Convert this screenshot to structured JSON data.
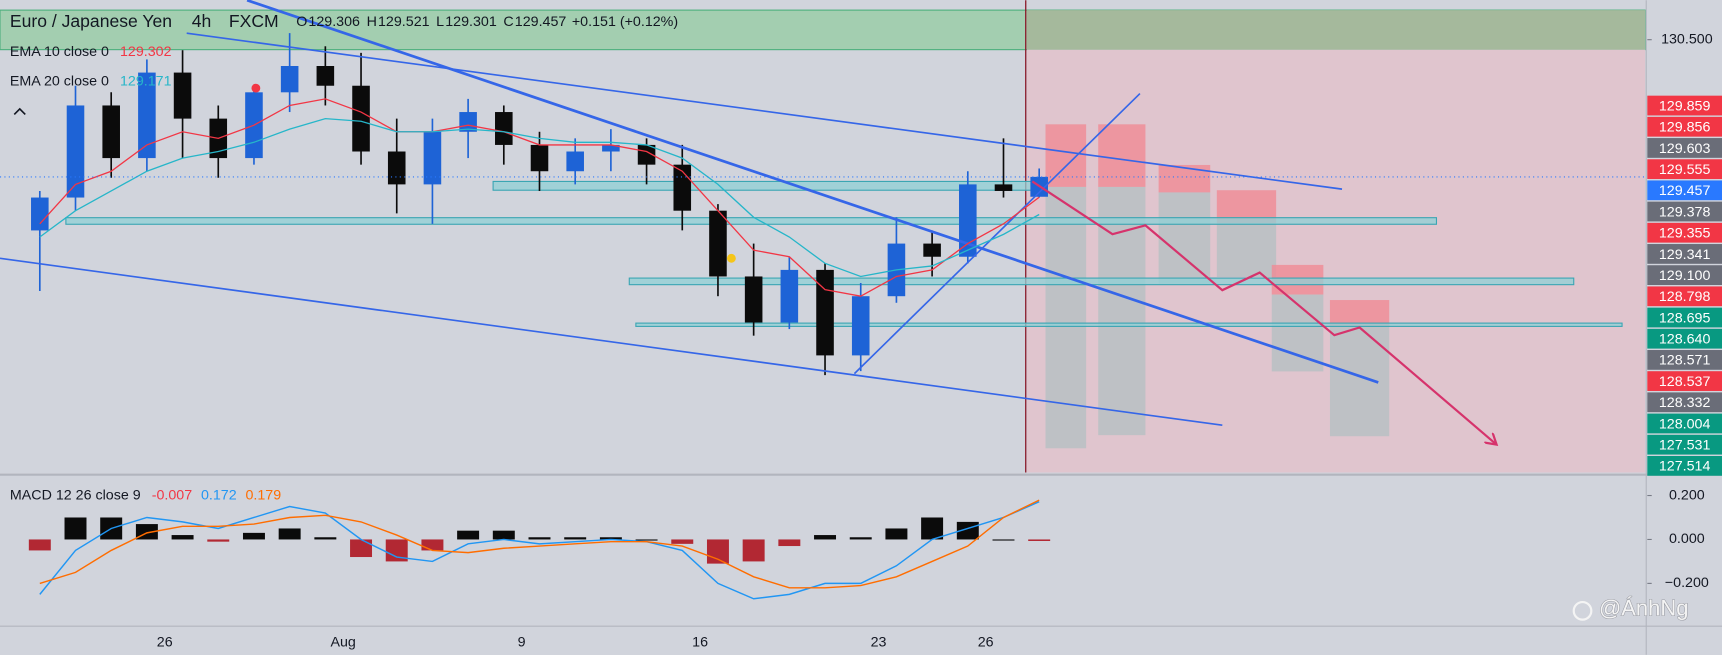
{
  "chart_data": {
    "type": "candlestick",
    "header": {
      "symbol": "Euro / Japanese Yen",
      "interval": "4h",
      "source": "FXCM",
      "ohlc": [
        {
          "label": "O",
          "value": 129.306
        },
        {
          "label": "H",
          "value": 129.521
        },
        {
          "label": "L",
          "value": 129.301
        },
        {
          "label": "C",
          "value": 129.457
        }
      ],
      "change": "+0.151 (+0.12%)"
    },
    "categories": [
      null,
      null,
      null,
      null,
      "26",
      null,
      null,
      null,
      null,
      "Aug",
      null,
      null,
      null,
      null,
      "9",
      null,
      null,
      null,
      null,
      "16",
      null,
      null,
      null,
      null,
      "23",
      null,
      null,
      "26",
      null
    ],
    "open": [
      129.05,
      129.3,
      130.0,
      129.6,
      130.25,
      129.9,
      129.6,
      130.1,
      130.3,
      130.15,
      129.65,
      129.4,
      129.8,
      129.95,
      129.7,
      129.5,
      129.65,
      129.7,
      129.55,
      129.2,
      128.7,
      128.35,
      128.75,
      128.1,
      128.55,
      128.95,
      128.85,
      129.4,
      129.306
    ],
    "high": [
      129.35,
      130.15,
      130.1,
      130.35,
      130.42,
      130.0,
      130.15,
      130.55,
      130.45,
      130.4,
      129.9,
      129.9,
      130.05,
      130.0,
      129.8,
      129.75,
      129.82,
      129.75,
      129.7,
      129.25,
      128.95,
      128.85,
      128.8,
      128.65,
      129.15,
      129.05,
      129.5,
      129.75,
      129.521
    ],
    "low": [
      128.59,
      129.2,
      129.45,
      129.5,
      129.6,
      129.45,
      129.55,
      129.95,
      130.0,
      129.55,
      129.18,
      129.1,
      129.6,
      129.55,
      129.35,
      129.4,
      129.5,
      129.4,
      129.05,
      128.55,
      128.25,
      128.3,
      127.95,
      127.98,
      128.5,
      128.7,
      128.8,
      129.3,
      129.301
    ],
    "close": [
      129.3,
      130.0,
      129.6,
      130.25,
      129.9,
      129.6,
      130.1,
      130.3,
      130.15,
      129.65,
      129.4,
      129.8,
      129.95,
      129.7,
      129.5,
      129.65,
      129.7,
      129.55,
      129.2,
      128.7,
      128.35,
      128.75,
      128.1,
      128.55,
      128.95,
      128.85,
      129.4,
      129.35,
      129.457
    ],
    "up_color": "#1e63d6",
    "down_color": "#0b0b0b",
    "ylim": [
      127.21,
      130.8
    ],
    "yticks": [
      {
        "value": 130.5,
        "label": "130.500"
      }
    ],
    "price_labels": [
      {
        "value": 129.859,
        "color": "#f23645"
      },
      {
        "value": 129.856,
        "color": "#f23645"
      },
      {
        "value": 129.603,
        "color": "#6a6d78"
      },
      {
        "value": 129.555,
        "color": "#f23645"
      },
      {
        "value": 129.457,
        "color": "#2979ff"
      },
      {
        "value": 129.378,
        "color": "#6a6d78"
      },
      {
        "value": 129.355,
        "color": "#f23645"
      },
      {
        "value": 129.341,
        "color": "#6a6d78"
      },
      {
        "value": 129.1,
        "label": "129.100",
        "color": "#6a6d78"
      },
      {
        "value": 128.798,
        "color": "#f23645"
      },
      {
        "value": 128.695,
        "color": "#089981"
      },
      {
        "value": 128.64,
        "label": "128.640",
        "color": "#089981"
      },
      {
        "value": 128.571,
        "color": "#6a6d78"
      },
      {
        "value": 128.537,
        "color": "#f23645"
      },
      {
        "value": 128.332,
        "color": "#6a6d78"
      },
      {
        "value": 128.004,
        "color": "#089981"
      },
      {
        "value": 127.531,
        "color": "#089981"
      },
      {
        "value": 127.514,
        "color": "#089981"
      }
    ],
    "indicators": [
      {
        "name": "EMA 10 close 0",
        "value": 129.302,
        "color": "#f23645",
        "values": [
          129.1,
          129.4,
          129.5,
          129.7,
          129.8,
          129.75,
          129.85,
          130.0,
          130.05,
          129.95,
          129.8,
          129.8,
          129.85,
          129.8,
          129.7,
          129.7,
          129.7,
          129.65,
          129.5,
          129.2,
          128.9,
          128.85,
          128.6,
          128.55,
          128.7,
          128.75,
          128.95,
          129.1,
          129.302
        ]
      },
      {
        "name": "EMA 20 close 0",
        "value": 129.171,
        "color": "#26b6c9",
        "values": [
          129.0,
          129.2,
          129.35,
          129.5,
          129.6,
          129.65,
          129.72,
          129.82,
          129.9,
          129.88,
          129.8,
          129.8,
          129.82,
          129.8,
          129.75,
          129.72,
          129.72,
          129.7,
          129.6,
          129.4,
          129.15,
          129.0,
          128.8,
          128.7,
          128.75,
          128.78,
          128.9,
          129.02,
          129.171
        ]
      }
    ],
    "macd": {
      "name": "MACD 12 26 close 9",
      "ylim": [
        -0.395,
        0.29
      ],
      "yticks": [
        {
          "value": 0.2,
          "label": "0.200"
        },
        {
          "value": 0,
          "label": "0.000"
        },
        {
          "value": -0.2,
          "label": "−0.200"
        }
      ],
      "histogram": {
        "value": -0.007,
        "color": "#f23645",
        "positive_color": "#0b0b0b",
        "negative_color": "#b22833",
        "values": [
          -0.05,
          0.1,
          0.1,
          0.07,
          0.02,
          -0.01,
          0.03,
          0.05,
          0.01,
          -0.08,
          -0.1,
          -0.05,
          0.04,
          0.04,
          0.01,
          0.01,
          0.01,
          0.0,
          -0.02,
          -0.11,
          -0.1,
          -0.03,
          0.02,
          0.01,
          0.05,
          0.1,
          0.08,
          0.0,
          -0.007
        ]
      },
      "macd": {
        "value": 0.172,
        "color": "#2196f3",
        "values": [
          -0.25,
          -0.05,
          0.05,
          0.1,
          0.08,
          0.05,
          0.1,
          0.15,
          0.12,
          0.0,
          -0.08,
          -0.1,
          -0.02,
          0.0,
          -0.02,
          -0.01,
          0.0,
          -0.01,
          -0.05,
          -0.2,
          -0.27,
          -0.25,
          -0.2,
          -0.2,
          -0.12,
          0.0,
          0.05,
          0.1,
          0.172
        ]
      },
      "signal": {
        "value": 0.179,
        "color": "#ff6d00",
        "values": [
          -0.2,
          -0.15,
          -0.05,
          0.03,
          0.06,
          0.06,
          0.07,
          0.1,
          0.11,
          0.08,
          0.02,
          -0.05,
          -0.06,
          -0.04,
          -0.03,
          -0.02,
          -0.01,
          -0.01,
          -0.03,
          -0.09,
          -0.17,
          -0.22,
          -0.22,
          -0.21,
          -0.17,
          -0.1,
          -0.03,
          0.1,
          0.179
        ]
      }
    },
    "watermark": "@ÁnhNg"
  }
}
